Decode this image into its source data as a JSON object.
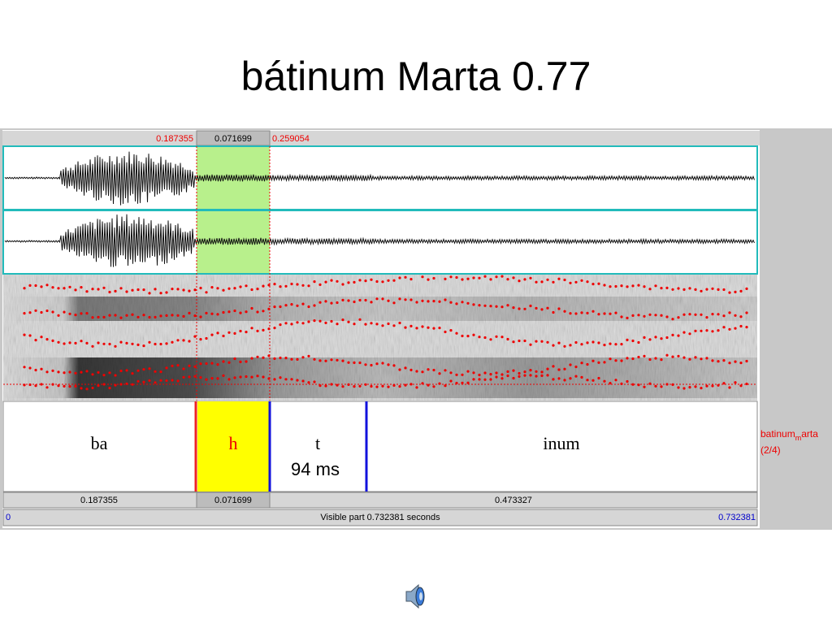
{
  "title": "bátinum Marta 0.77",
  "selection_bar": {
    "left": "0.187355",
    "selected": "0.071699",
    "right": "0.259054"
  },
  "tier": {
    "intervals": [
      {
        "label": "ba"
      },
      {
        "label": "h"
      },
      {
        "label": "t",
        "note": "94 ms"
      },
      {
        "label": "inum"
      }
    ]
  },
  "side_panel": {
    "name_parts": [
      "batinum",
      "m",
      "arta"
    ],
    "index": "(2/4)"
  },
  "duration_bar": {
    "first": "0.187355",
    "second": "0.071699",
    "third": "0.473327"
  },
  "footer": {
    "start": "0",
    "visible": "Visible part 0.732381 seconds",
    "end": "0.732381"
  }
}
